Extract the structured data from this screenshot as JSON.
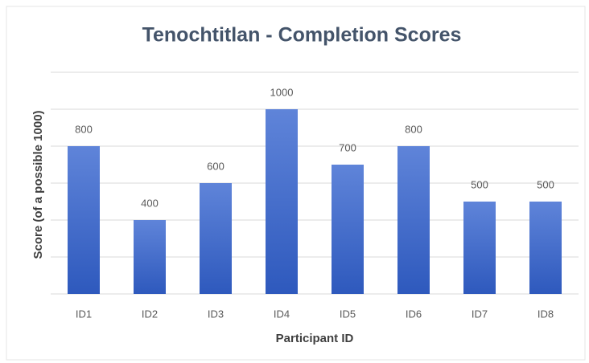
{
  "chart_data": {
    "type": "bar",
    "title": "Tenochtitlan - Completion Scores",
    "x_label": "Participant ID",
    "y_label": "Score (of a possible 1000)",
    "categories": [
      "ID1",
      "ID2",
      "ID3",
      "ID4",
      "ID5",
      "ID6",
      "ID7",
      "ID8"
    ],
    "values": [
      800,
      400,
      600,
      1000,
      700,
      800,
      500,
      500
    ],
    "color": "#4a70cf",
    "ylim": [
      0,
      1200
    ],
    "yticks": [
      0,
      200,
      400,
      600,
      800,
      1000,
      1200
    ],
    "grid": true
  }
}
